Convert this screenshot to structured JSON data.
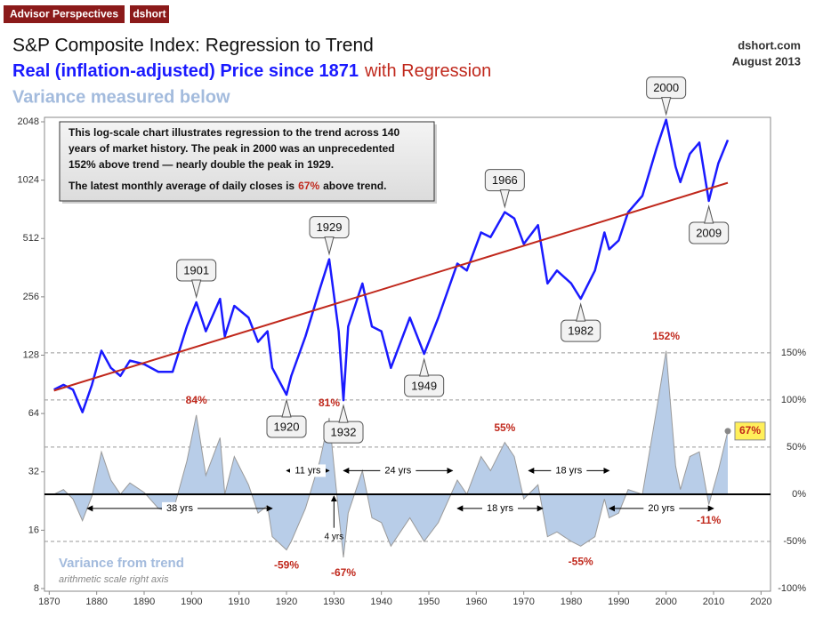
{
  "header": {
    "brand": "Advisor Perspectives",
    "author": "dshort"
  },
  "chart_data": {
    "type": "line",
    "title": "S&P Composite Index: Regression to Trend",
    "subtitle": "Real (inflation-adjusted) Price since 1871",
    "subtitle_extra": "with Regression",
    "subtitle2": "Variance measured below",
    "source": "dshort.com",
    "date": "August 2013",
    "note": [
      "This log-scale chart illustrates regression to the trend across 140",
      "years of market history. The peak in 2000 was an unprecedented",
      "152% above trend — nearly double the peak in 1929."
    ],
    "note_latest": [
      "The latest monthly average of daily closes is",
      "67%",
      "above trend."
    ],
    "variance_subnote": "arithmetic scale right axis",
    "log_scale": true,
    "xlim": [
      1869,
      2022
    ],
    "xticks": [
      1870,
      1880,
      1890,
      1900,
      1910,
      1920,
      1930,
      1940,
      1950,
      1960,
      1970,
      1980,
      1990,
      2000,
      2010,
      2020
    ],
    "ylim": [
      8,
      2048
    ],
    "yticks": [
      8,
      16,
      32,
      64,
      128,
      256,
      512,
      1024,
      2048
    ],
    "y2lim": [
      -100,
      395
    ],
    "y2ticks": [
      {
        "value": -100,
        "label": "-100%"
      },
      {
        "value": -50,
        "label": "-50%"
      },
      {
        "value": 0,
        "label": "0%"
      },
      {
        "value": 50,
        "label": "50%"
      },
      {
        "value": 100,
        "label": "100%"
      },
      {
        "value": 150,
        "label": "150%"
      }
    ],
    "grid": "y2",
    "x": [
      1871,
      1873,
      1875,
      1877,
      1879,
      1881,
      1883,
      1885,
      1887,
      1890,
      1893,
      1896,
      1899,
      1901,
      1903,
      1906,
      1907,
      1909,
      1912,
      1914,
      1916,
      1917,
      1920,
      1921,
      1924,
      1927,
      1929,
      1931,
      1932,
      1933,
      1936,
      1938,
      1940,
      1942,
      1946,
      1949,
      1952,
      1956,
      1958,
      1961,
      1963,
      1966,
      1968,
      1970,
      1973,
      1975,
      1977,
      1980,
      1982,
      1985,
      1987,
      1988,
      1990,
      1992,
      1995,
      1998,
      2000,
      2002,
      2003,
      2005,
      2007,
      2009,
      2011,
      2013
    ],
    "series": [
      {
        "color": "#1a1aff",
        "values": [
          85,
          90,
          85,
          65,
          90,
          135,
          110,
          100,
          120,
          115,
          105,
          105,
          180,
          240,
          170,
          250,
          160,
          230,
          200,
          150,
          170,
          110,
          80,
          100,
          160,
          280,
          400,
          170,
          75,
          180,
          300,
          180,
          170,
          110,
          200,
          130,
          200,
          380,
          350,
          550,
          520,
          700,
          650,
          480,
          600,
          300,
          350,
          300,
          250,
          350,
          550,
          450,
          500,
          700,
          850,
          1500,
          2100,
          1200,
          1000,
          1400,
          1600,
          800,
          1250,
          1650
        ]
      },
      {
        "color": "#c0281c",
        "x": [
          1871,
          2013
        ],
        "values": [
          84,
          992
        ]
      },
      {
        "name": "Variance from trend",
        "axis": "y2",
        "color": "#b8cde8",
        "line_color": "#9a9a9a",
        "values": [
          0,
          5,
          -5,
          -28,
          -2,
          45,
          15,
          0,
          12,
          2,
          -15,
          -20,
          35,
          84,
          20,
          60,
          0,
          40,
          10,
          -20,
          -12,
          -45,
          -59,
          -50,
          -15,
          35,
          81,
          -20,
          -67,
          -20,
          25,
          -25,
          -30,
          -55,
          -25,
          -50,
          -30,
          15,
          0,
          40,
          25,
          55,
          40,
          -5,
          10,
          -45,
          -40,
          -50,
          -55,
          -45,
          -5,
          -25,
          -20,
          5,
          0,
          90,
          152,
          30,
          5,
          40,
          45,
          -11,
          25,
          67
        ],
        "value_labels": [
          null,
          null,
          null,
          null,
          null,
          null,
          null,
          null,
          null,
          null,
          null,
          null,
          null,
          "84%",
          null,
          null,
          null,
          null,
          null,
          null,
          null,
          null,
          "-59%",
          null,
          null,
          null,
          "81%",
          null,
          "-67%",
          null,
          null,
          null,
          null,
          null,
          null,
          null,
          null,
          null,
          null,
          null,
          null,
          "55%",
          null,
          null,
          null,
          null,
          null,
          null,
          "-55%",
          null,
          null,
          null,
          null,
          null,
          null,
          null,
          "152%",
          null,
          null,
          null,
          null,
          "-11%",
          null,
          "67%"
        ]
      }
    ],
    "callouts": [
      "1901",
      "1920",
      "1929",
      "1932",
      "1949",
      "1966",
      "1982",
      "2000",
      "2009"
    ],
    "spans": [
      {
        "label": "38 yrs",
        "x": [
          1878,
          1917
        ],
        "y": -15
      },
      {
        "label": "11 yrs",
        "x": [
          1920,
          1929
        ],
        "y": 25
      },
      {
        "label": "4 yrs",
        "x": [
          1930,
          1930
        ],
        "y": -45
      },
      {
        "label": "24 yrs",
        "x": [
          1932,
          1955
        ],
        "y": 25
      },
      {
        "label": "18 yrs",
        "x": [
          1956,
          1974
        ],
        "y": -15
      },
      {
        "label": "18 yrs",
        "x": [
          1971,
          1988
        ],
        "y": 25
      },
      {
        "label": "20 yrs",
        "x": [
          1988,
          2010
        ],
        "y": -15
      }
    ]
  }
}
